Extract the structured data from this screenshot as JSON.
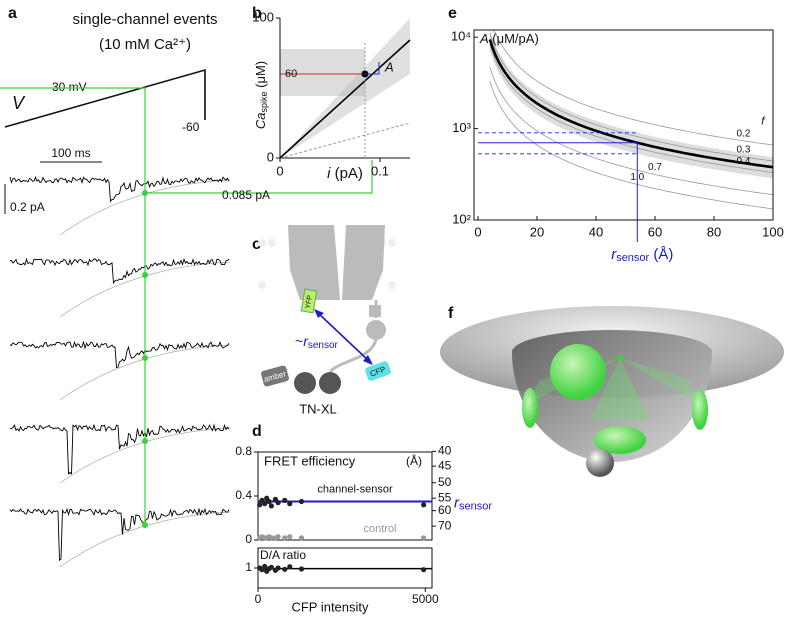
{
  "panels": {
    "a": {
      "label": "a",
      "title": "single-channel events",
      "subtitle": "(10 mM Ca²⁺)",
      "voltage_label": "V",
      "voltage_high": "30 mV",
      "voltage_low": "-60",
      "time_scale": "100 ms",
      "current_scale": "0.2 pA",
      "current_readout": "0.085 pA"
    },
    "b": {
      "label": "b",
      "ylabel": "Ca",
      "ylabel_sub": "spike",
      "ylabel_unit": " (μM)",
      "xlabel_var": "i",
      "xlabel_unit": " (pA)",
      "xlim": [
        0,
        0.13
      ],
      "xticks": [
        0,
        0.1
      ],
      "ylim": [
        0,
        100
      ],
      "yticks": [
        0,
        100
      ],
      "readout_x": 0.085,
      "readout_y": 60,
      "readout_label": "60",
      "slope_label": "A"
    },
    "c": {
      "label": "c",
      "yfp": "YFP",
      "cfp": "CFP",
      "amber": "amber",
      "distance_prefix": "~",
      "distance_var": "r",
      "distance_sub": "sensor",
      "construct": "TN-XL"
    },
    "d": {
      "label": "d",
      "top_title": "FRET efficiency",
      "right_unit": "(Å)",
      "series_label": "channel-sensor",
      "control_label": "control",
      "right_label_var": "r",
      "right_label_sub": "sensor",
      "bottom_title": "D/A ratio",
      "xlabel": "CFP intensity",
      "xlim": [
        0,
        5200
      ],
      "xticks": [
        0,
        5000
      ],
      "ylim": [
        0,
        0.8
      ],
      "yticks": [
        0,
        0.4,
        0.8
      ],
      "y2ticks": [
        40,
        45,
        50,
        55,
        60,
        70
      ],
      "ratio_ylim": [
        0.4,
        1.6
      ],
      "ratio_yticks": [
        1
      ],
      "intensity": [
        50,
        120,
        200,
        260,
        330,
        400,
        520,
        600,
        800,
        950,
        1300,
        4950
      ],
      "fret": [
        0.32,
        0.36,
        0.33,
        0.38,
        0.35,
        0.31,
        0.37,
        0.34,
        0.36,
        0.33,
        0.35,
        0.32
      ],
      "control": [
        0.02,
        0.03,
        0.02,
        0.02,
        0.03,
        0.02,
        0.02,
        0.03,
        0.02,
        0.03,
        0.02,
        0.02
      ],
      "ratio": [
        1.0,
        0.95,
        1.05,
        0.9,
        0.98,
        1.02,
        0.93,
        1.0,
        0.96,
        1.04,
        0.97,
        0.95
      ],
      "fret_mean": 0.35,
      "ratio_mean": 0.98
    },
    "e": {
      "label": "e",
      "ylabel_var": "A",
      "ylabel_unit": " (μM/pA)",
      "xlabel_var": "r",
      "xlabel_sub": "sensor",
      "xlabel_unit": " (Å)",
      "f_label": "f",
      "ylog": true,
      "xlim": [
        0,
        100
      ],
      "xticks": [
        0,
        20,
        40,
        60,
        80,
        100
      ],
      "ylim": [
        100,
        12000
      ],
      "yticks": [
        {
          "value": 100,
          "label": "10²"
        },
        {
          "value": 1000,
          "label": "10³"
        },
        {
          "value": 10000,
          "label": "10⁴"
        }
      ],
      "f_values": [
        0.2,
        0.3,
        0.4,
        0.7,
        {
          "value": 1,
          "label": "1.0"
        }
      ],
      "readout": {
        "r": 54,
        "A": 700,
        "A_low": 530,
        "A_high": 900
      }
    },
    "f": {
      "label": "f"
    }
  }
}
